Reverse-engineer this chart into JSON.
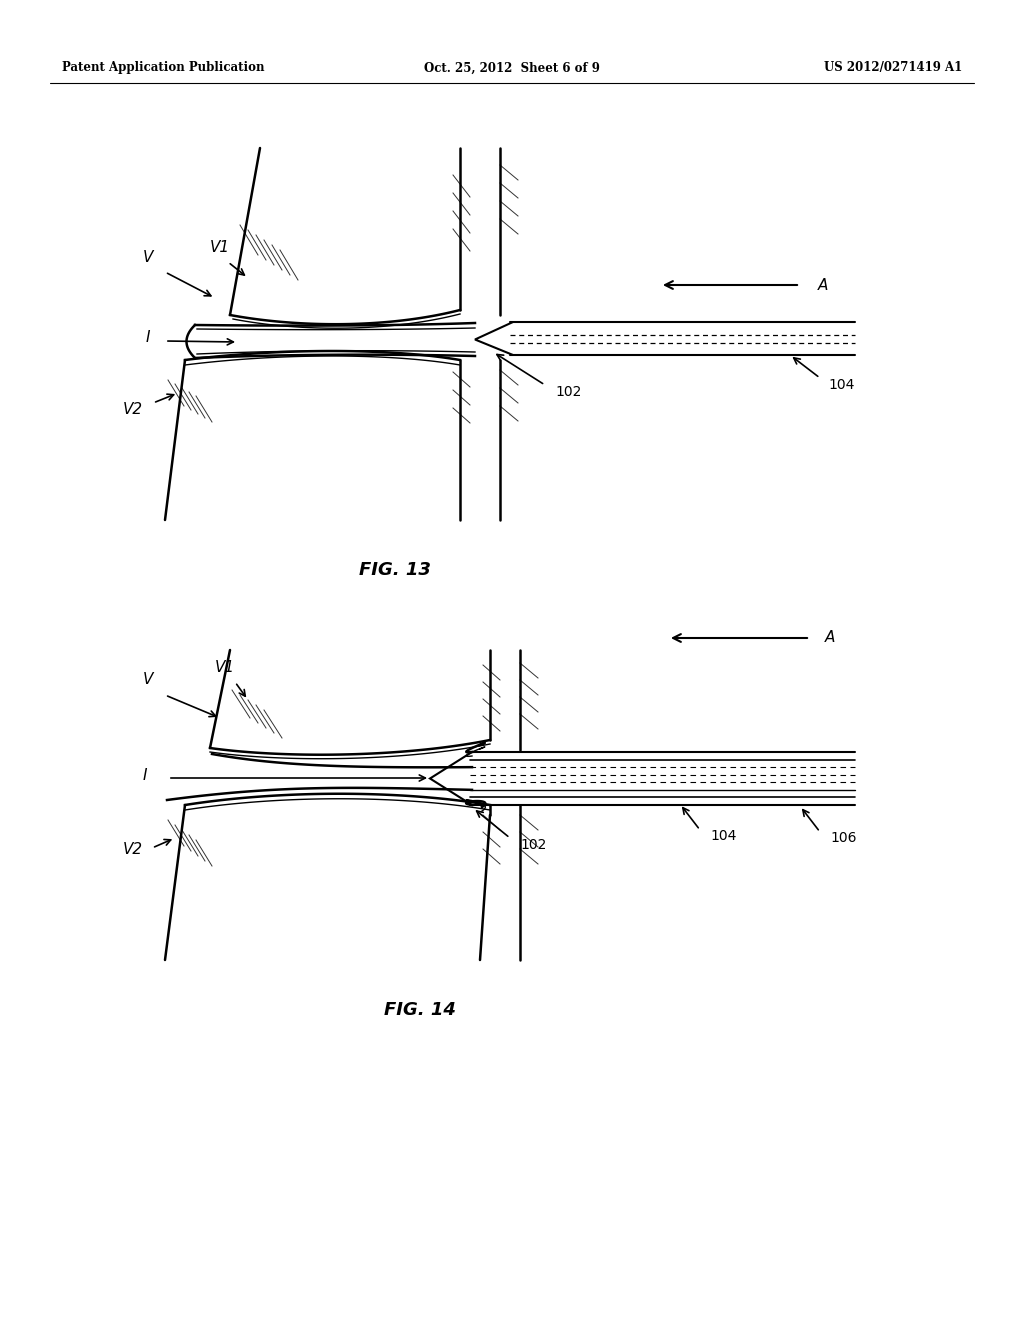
{
  "bg_color": "#ffffff",
  "header_left": "Patent Application Publication",
  "header_center": "Oct. 25, 2012  Sheet 6 of 9",
  "header_right": "US 2012/0271419 A1",
  "fig13_label": "FIG. 13",
  "fig14_label": "FIG. 14",
  "label_102": "102",
  "label_104": "104",
  "label_106": "106",
  "label_A": "A",
  "label_V": "V",
  "label_V1": "V1",
  "label_V2": "V2",
  "label_I": "I"
}
